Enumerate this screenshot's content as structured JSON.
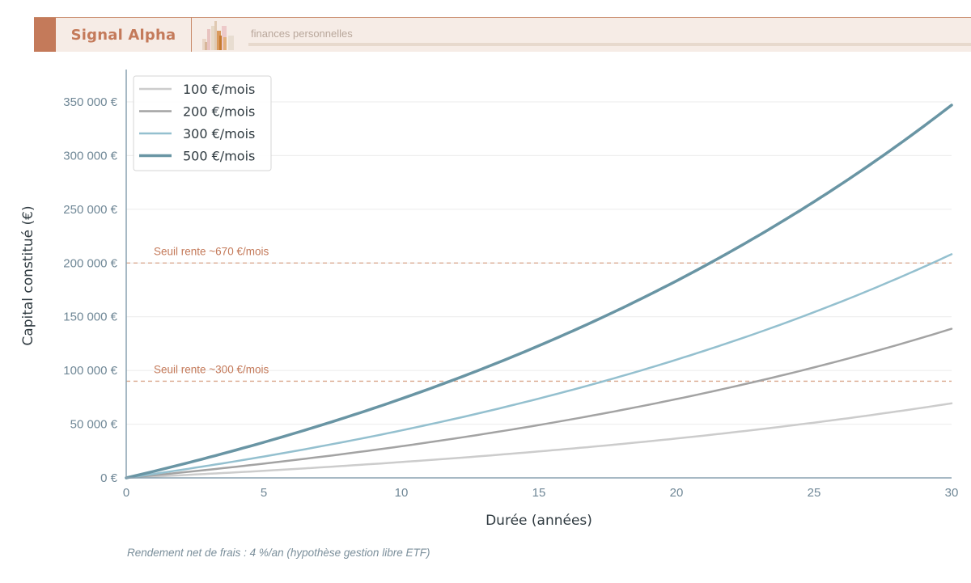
{
  "header": {
    "brand": "Signal Alpha",
    "tagline": "finances personnelles",
    "logo_icon": "bar-chart-logo-icon",
    "colors": {
      "accent": "#c47a5a",
      "background": "#f6ece6",
      "rule": "#e7d9cd",
      "tagline": "#b9a79b"
    }
  },
  "footnote": "Rendement net de frais : 4 %/an (hypothèse gestion libre ETF)",
  "chart_data": {
    "type": "line",
    "title": "",
    "xlabel": "Durée (années)",
    "ylabel": "Capital constitué (€)",
    "xlim": [
      0,
      30
    ],
    "ylim": [
      0,
      380000
    ],
    "x_ticks": [
      0,
      5,
      10,
      15,
      20,
      25,
      30
    ],
    "x_tick_labels": [
      "0",
      "5",
      "10",
      "15",
      "20",
      "25",
      "30"
    ],
    "y_ticks": [
      0,
      50000,
      100000,
      150000,
      200000,
      250000,
      300000,
      350000
    ],
    "y_tick_labels": [
      "0 €",
      "50 000 €",
      "100 000 €",
      "150 000 €",
      "200 000 €",
      "250 000 €",
      "300 000 €",
      "350 000 €"
    ],
    "grid": "horizontal",
    "legend_position": "upper left",
    "annual_return": 0.04,
    "x": [
      0,
      5,
      10,
      15,
      20,
      25,
      30
    ],
    "series": [
      {
        "name": "100 €/mois",
        "monthly": 100,
        "color": "#cccccc",
        "width": 2.5,
        "values": [
          0,
          6630,
          14725,
          24609,
          36677,
          51413,
          69405
        ]
      },
      {
        "name": "200 €/mois",
        "monthly": 200,
        "color": "#a3a3a3",
        "width": 2.5,
        "values": [
          0,
          13260,
          29450,
          49218,
          73355,
          102826,
          138810
        ]
      },
      {
        "name": "300 €/mois",
        "monthly": 300,
        "color": "#94c0cf",
        "width": 2.5,
        "values": [
          0,
          19890,
          44175,
          73827,
          110032,
          154239,
          208215
        ]
      },
      {
        "name": "500 €/mois",
        "monthly": 500,
        "color": "#6995a4",
        "width": 3.5,
        "values": [
          0,
          33149,
          73625,
          123045,
          183387,
          257065,
          347025
        ]
      }
    ],
    "reference_lines": [
      {
        "y": 200000,
        "label": "Seuil rente ~670 €/mois",
        "color": "#d9a68c"
      },
      {
        "y": 90000,
        "label": "Seuil rente ~300 €/mois",
        "color": "#d9a68c"
      }
    ]
  }
}
